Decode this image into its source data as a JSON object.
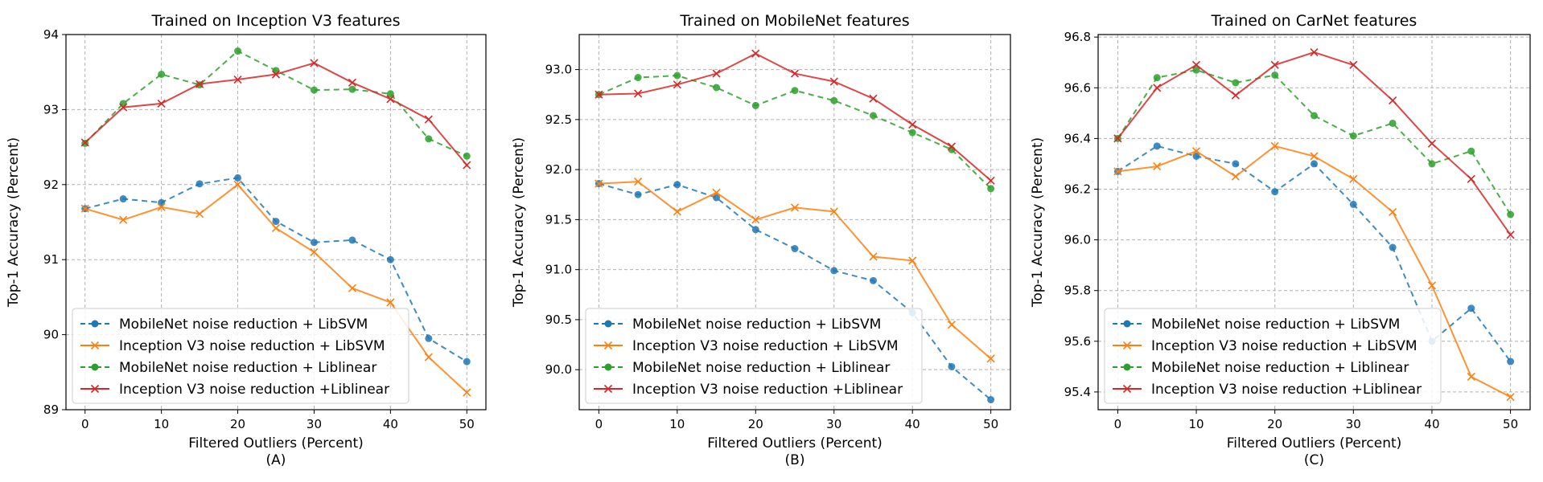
{
  "chart_data": [
    {
      "type": "line",
      "title": "Trained on Inception V3 features",
      "xlabel": "Filtered Outliers (Percent)",
      "sublabel": "(A)",
      "ylabel": "Top-1 Accuracy (Percent)",
      "x": [
        0,
        5,
        10,
        15,
        20,
        25,
        30,
        35,
        40,
        45,
        50
      ],
      "xticks": [
        "0",
        "10",
        "20",
        "30",
        "40",
        "50"
      ],
      "xlim": [
        -2.5,
        52.5
      ],
      "ylim": [
        89.0,
        94.0
      ],
      "yticks": [
        "89",
        "90",
        "91",
        "92",
        "93",
        "94"
      ],
      "grid": true,
      "legend_position": "lower-left",
      "series": [
        {
          "name": "MobileNet noise reduction + LibSVM",
          "values": [
            91.68,
            91.81,
            91.76,
            92.01,
            92.09,
            91.51,
            91.23,
            91.26,
            91.0,
            89.95,
            89.64
          ]
        },
        {
          "name": "Inception V3 noise reduction + LibSVM",
          "values": [
            91.68,
            91.53,
            91.7,
            91.61,
            92.0,
            91.42,
            91.1,
            90.62,
            90.43,
            89.7,
            89.23
          ]
        },
        {
          "name": "MobileNet noise reduction  + Liblinear",
          "values": [
            92.55,
            93.08,
            93.47,
            93.33,
            93.78,
            93.52,
            93.26,
            93.27,
            93.21,
            92.61,
            92.38
          ]
        },
        {
          "name": "Inception V3 noise reduction +Liblinear",
          "values": [
            92.56,
            93.03,
            93.08,
            93.34,
            93.4,
            93.47,
            93.62,
            93.36,
            93.14,
            92.87,
            92.26
          ]
        }
      ]
    },
    {
      "type": "line",
      "title": "Trained on MobileNet features",
      "xlabel": "Filtered Outliers (Percent)",
      "sublabel": "(B)",
      "ylabel": "Top-1 Accuracy (Percent)",
      "x": [
        0,
        5,
        10,
        15,
        20,
        25,
        30,
        35,
        40,
        45,
        50
      ],
      "xticks": [
        "0",
        "10",
        "20",
        "30",
        "40",
        "50"
      ],
      "xlim": [
        -2.5,
        52.5
      ],
      "ylim": [
        89.6,
        93.35
      ],
      "yticks": [
        "90.0",
        "90.5",
        "91.0",
        "91.5",
        "92.0",
        "92.5",
        "93.0"
      ],
      "grid": true,
      "legend_position": "lower-left",
      "series": [
        {
          "name": "MobileNet noise reduction + LibSVM",
          "values": [
            91.86,
            91.75,
            91.85,
            91.72,
            91.4,
            91.21,
            90.99,
            90.89,
            90.57,
            90.03,
            89.7
          ]
        },
        {
          "name": "Inception V3 noise reduction + LibSVM",
          "values": [
            91.86,
            91.88,
            91.58,
            91.77,
            91.5,
            91.62,
            91.58,
            91.13,
            91.09,
            90.45,
            90.11
          ]
        },
        {
          "name": "MobileNet noise reduction  + Liblinear",
          "values": [
            92.75,
            92.92,
            92.94,
            92.82,
            92.64,
            92.79,
            92.69,
            92.54,
            92.37,
            92.2,
            91.81
          ]
        },
        {
          "name": "Inception V3 noise reduction +Liblinear",
          "values": [
            92.75,
            92.76,
            92.85,
            92.96,
            93.16,
            92.96,
            92.88,
            92.71,
            92.45,
            92.23,
            91.89
          ]
        }
      ]
    },
    {
      "type": "line",
      "title": "Trained on CarNet features",
      "xlabel": "Filtered Outliers (Percent)",
      "sublabel": "(C)",
      "ylabel": "Top-1 Accuracy (Percent)",
      "x": [
        0,
        5,
        10,
        15,
        20,
        25,
        30,
        35,
        40,
        45,
        50
      ],
      "xticks": [
        "0",
        "10",
        "20",
        "30",
        "40",
        "50"
      ],
      "xlim": [
        -2.5,
        52.5
      ],
      "ylim": [
        95.33,
        96.81
      ],
      "yticks": [
        "95.4",
        "95.6",
        "95.8",
        "96.0",
        "96.2",
        "96.4",
        "96.6",
        "96.8"
      ],
      "grid": true,
      "legend_position": "lower-left",
      "series": [
        {
          "name": "MobileNet noise reduction + LibSVM",
          "values": [
            96.27,
            96.37,
            96.33,
            96.3,
            96.19,
            96.3,
            96.14,
            95.97,
            95.6,
            95.73,
            95.52
          ]
        },
        {
          "name": "Inception V3 noise reduction + LibSVM",
          "values": [
            96.27,
            96.29,
            96.35,
            96.25,
            96.37,
            96.33,
            96.24,
            96.11,
            95.82,
            95.46,
            95.38
          ]
        },
        {
          "name": "MobileNet noise reduction  + Liblinear",
          "values": [
            96.4,
            96.64,
            96.67,
            96.62,
            96.65,
            96.49,
            96.41,
            96.46,
            96.3,
            96.35,
            96.1
          ]
        },
        {
          "name": "Inception V3 noise reduction +Liblinear",
          "values": [
            96.4,
            96.6,
            96.69,
            96.57,
            96.69,
            96.74,
            96.69,
            96.55,
            96.38,
            96.24,
            96.02
          ]
        }
      ]
    }
  ],
  "series_styles": [
    {
      "color": "#1f77b4",
      "dash": "7,5",
      "marker": "circle"
    },
    {
      "color": "#ff7f0e",
      "dash": "",
      "marker": "x"
    },
    {
      "color": "#2ca02c",
      "dash": "7,5",
      "marker": "circle"
    },
    {
      "color": "#d62728",
      "dash": "",
      "marker": "x"
    }
  ]
}
